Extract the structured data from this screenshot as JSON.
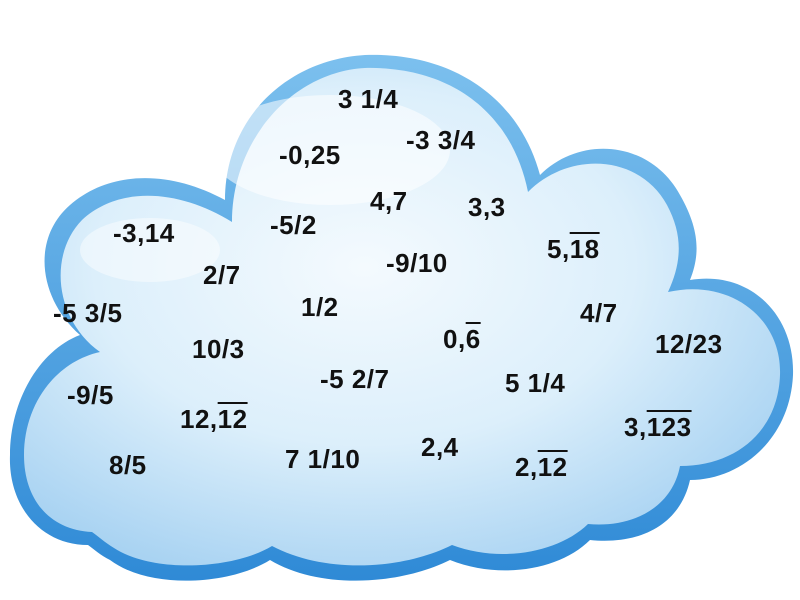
{
  "numbers": {
    "n01": {
      "text": "3 1/4"
    },
    "n02": {
      "text": "-0,25"
    },
    "n03": {
      "text": "-3 3/4"
    },
    "n04": {
      "text": "4,7"
    },
    "n05": {
      "text": "3,3"
    },
    "n06": {
      "text": "-3,14"
    },
    "n07": {
      "text": "-5/2"
    },
    "n08": {
      "text": "5,",
      "overline": "18"
    },
    "n09": {
      "text": "2/7"
    },
    "n10": {
      "text": "-9/10"
    },
    "n11": {
      "text": "-5 3/5"
    },
    "n12": {
      "text": "1/2"
    },
    "n13": {
      "text": "4/7"
    },
    "n14": {
      "text": "0,",
      "overline": "6"
    },
    "n15": {
      "text": "12/23"
    },
    "n16": {
      "text": "10/3"
    },
    "n17": {
      "text": "-5 2/7"
    },
    "n18": {
      "text": "5 1/4"
    },
    "n19": {
      "text": "-9/5"
    },
    "n20": {
      "text": "12,",
      "overline": "12"
    },
    "n21": {
      "text": "3,",
      "overline": "123"
    },
    "n22": {
      "text": "8/5"
    },
    "n23": {
      "text": "7 1/10"
    },
    "n24": {
      "text": "2,4"
    },
    "n25": {
      "text": "2,",
      "overline": "12"
    }
  },
  "colors": {
    "cloud_outline": "#3f9be0",
    "cloud_fill_light": "#eaf5fd",
    "cloud_fill_dark": "#a9d3f2",
    "text": "#111111"
  }
}
